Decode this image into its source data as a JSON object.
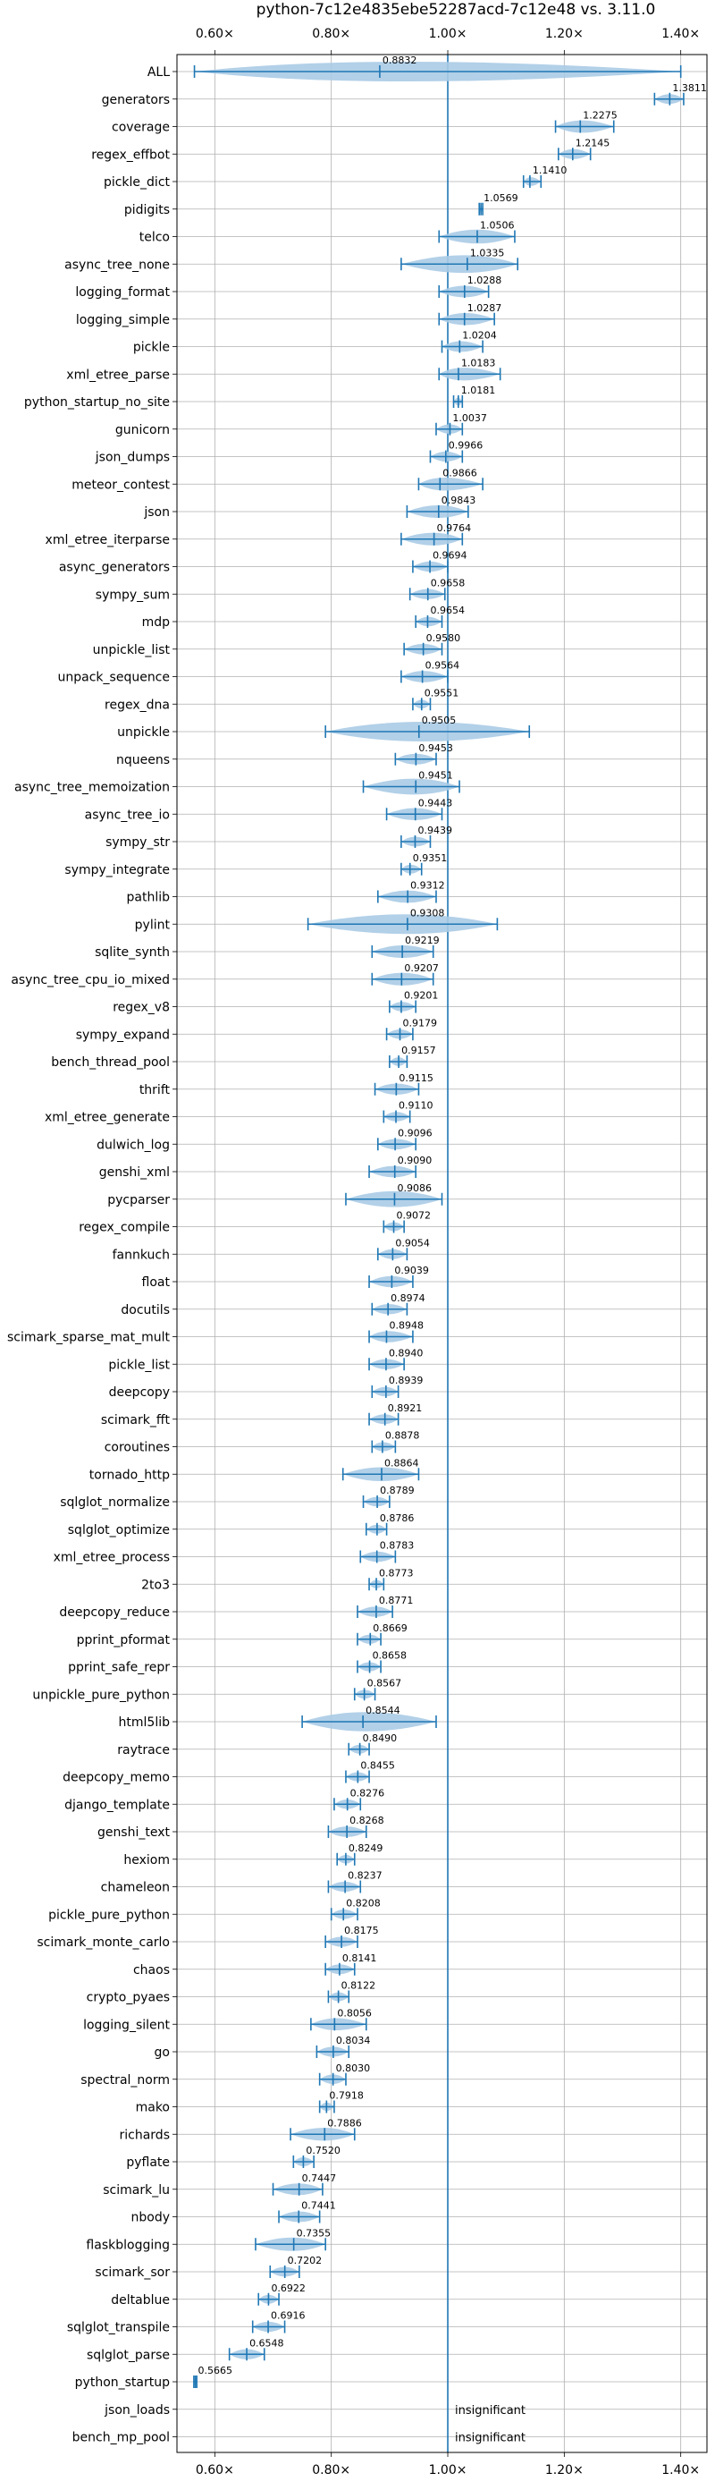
{
  "chart_data": {
    "type": "violin",
    "title": "python-7c12e4835ebe52287acd-7c12e48 vs. 3.11.0",
    "xlim": [
      0.535,
      1.445
    ],
    "xticks": [
      0.6,
      0.8,
      1.0,
      1.2,
      1.4
    ],
    "xtick_labels": [
      "0.60×",
      "0.80×",
      "1.00×",
      "1.20×",
      "1.40×"
    ],
    "reference_line": 1.0,
    "accent_color": "#1f77b4",
    "violin_color": "#aacbe6",
    "grid": true,
    "benchmarks": [
      {
        "name": "ALL",
        "value": 0.8832,
        "label": "0.8832",
        "lo": 0.565,
        "hi": 1.4
      },
      {
        "name": "generators",
        "value": 1.3811,
        "label": "1.3811",
        "lo": 1.355,
        "hi": 1.405
      },
      {
        "name": "coverage",
        "value": 1.2275,
        "label": "1.2275",
        "lo": 1.185,
        "hi": 1.285
      },
      {
        "name": "regex_effbot",
        "value": 1.2145,
        "label": "1.2145",
        "lo": 1.19,
        "hi": 1.245
      },
      {
        "name": "pickle_dict",
        "value": 1.141,
        "label": "1.1410",
        "lo": 1.13,
        "hi": 1.16
      },
      {
        "name": "pidigits",
        "value": 1.0569,
        "label": "1.0569",
        "lo": 1.054,
        "hi": 1.06
      },
      {
        "name": "telco",
        "value": 1.0506,
        "label": "1.0506",
        "lo": 0.985,
        "hi": 1.115
      },
      {
        "name": "async_tree_none",
        "value": 1.0335,
        "label": "1.0335",
        "lo": 0.92,
        "hi": 1.12
      },
      {
        "name": "logging_format",
        "value": 1.0288,
        "label": "1.0288",
        "lo": 0.985,
        "hi": 1.07
      },
      {
        "name": "logging_simple",
        "value": 1.0287,
        "label": "1.0287",
        "lo": 0.985,
        "hi": 1.08
      },
      {
        "name": "pickle",
        "value": 1.0204,
        "label": "1.0204",
        "lo": 0.99,
        "hi": 1.06
      },
      {
        "name": "xml_etree_parse",
        "value": 1.0183,
        "label": "1.0183",
        "lo": 0.985,
        "hi": 1.09
      },
      {
        "name": "python_startup_no_site",
        "value": 1.0181,
        "label": "1.0181",
        "lo": 1.01,
        "hi": 1.025
      },
      {
        "name": "gunicorn",
        "value": 1.0037,
        "label": "1.0037",
        "lo": 0.98,
        "hi": 1.025
      },
      {
        "name": "json_dumps",
        "value": 0.9966,
        "label": "0.9966",
        "lo": 0.97,
        "hi": 1.025
      },
      {
        "name": "meteor_contest",
        "value": 0.9866,
        "label": "0.9866",
        "lo": 0.95,
        "hi": 1.06
      },
      {
        "name": "json",
        "value": 0.9843,
        "label": "0.9843",
        "lo": 0.93,
        "hi": 1.035
      },
      {
        "name": "xml_etree_iterparse",
        "value": 0.9764,
        "label": "0.9764",
        "lo": 0.92,
        "hi": 1.025
      },
      {
        "name": "async_generators",
        "value": 0.9694,
        "label": "0.9694",
        "lo": 0.94,
        "hi": 1.0
      },
      {
        "name": "sympy_sum",
        "value": 0.9658,
        "label": "0.9658",
        "lo": 0.935,
        "hi": 0.995
      },
      {
        "name": "mdp",
        "value": 0.9654,
        "label": "0.9654",
        "lo": 0.945,
        "hi": 0.99
      },
      {
        "name": "unpickle_list",
        "value": 0.958,
        "label": "0.9580",
        "lo": 0.925,
        "hi": 0.99
      },
      {
        "name": "unpack_sequence",
        "value": 0.9564,
        "label": "0.9564",
        "lo": 0.92,
        "hi": 1.0
      },
      {
        "name": "regex_dna",
        "value": 0.9551,
        "label": "0.9551",
        "lo": 0.94,
        "hi": 0.97
      },
      {
        "name": "unpickle",
        "value": 0.9505,
        "label": "0.9505",
        "lo": 0.79,
        "hi": 1.14
      },
      {
        "name": "nqueens",
        "value": 0.9453,
        "label": "0.9453",
        "lo": 0.91,
        "hi": 0.98
      },
      {
        "name": "async_tree_memoization",
        "value": 0.9451,
        "label": "0.9451",
        "lo": 0.855,
        "hi": 1.02
      },
      {
        "name": "async_tree_io",
        "value": 0.9443,
        "label": "0.9443",
        "lo": 0.895,
        "hi": 0.99
      },
      {
        "name": "sympy_str",
        "value": 0.9439,
        "label": "0.9439",
        "lo": 0.92,
        "hi": 0.97
      },
      {
        "name": "sympy_integrate",
        "value": 0.9351,
        "label": "0.9351",
        "lo": 0.92,
        "hi": 0.955
      },
      {
        "name": "pathlib",
        "value": 0.9312,
        "label": "0.9312",
        "lo": 0.88,
        "hi": 0.98
      },
      {
        "name": "pylint",
        "value": 0.9308,
        "label": "0.9308",
        "lo": 0.76,
        "hi": 1.085
      },
      {
        "name": "sqlite_synth",
        "value": 0.9219,
        "label": "0.9219",
        "lo": 0.87,
        "hi": 0.975
      },
      {
        "name": "async_tree_cpu_io_mixed",
        "value": 0.9207,
        "label": "0.9207",
        "lo": 0.87,
        "hi": 0.975
      },
      {
        "name": "regex_v8",
        "value": 0.9201,
        "label": "0.9201",
        "lo": 0.9,
        "hi": 0.945
      },
      {
        "name": "sympy_expand",
        "value": 0.9179,
        "label": "0.9179",
        "lo": 0.895,
        "hi": 0.94
      },
      {
        "name": "bench_thread_pool",
        "value": 0.9157,
        "label": "0.9157",
        "lo": 0.9,
        "hi": 0.93
      },
      {
        "name": "thrift",
        "value": 0.9115,
        "label": "0.9115",
        "lo": 0.875,
        "hi": 0.95
      },
      {
        "name": "xml_etree_generate",
        "value": 0.911,
        "label": "0.9110",
        "lo": 0.89,
        "hi": 0.935
      },
      {
        "name": "dulwich_log",
        "value": 0.9096,
        "label": "0.9096",
        "lo": 0.88,
        "hi": 0.945
      },
      {
        "name": "genshi_xml",
        "value": 0.909,
        "label": "0.9090",
        "lo": 0.865,
        "hi": 0.945
      },
      {
        "name": "pycparser",
        "value": 0.9086,
        "label": "0.9086",
        "lo": 0.825,
        "hi": 0.99
      },
      {
        "name": "regex_compile",
        "value": 0.9072,
        "label": "0.9072",
        "lo": 0.89,
        "hi": 0.925
      },
      {
        "name": "fannkuch",
        "value": 0.9054,
        "label": "0.9054",
        "lo": 0.88,
        "hi": 0.93
      },
      {
        "name": "float",
        "value": 0.9039,
        "label": "0.9039",
        "lo": 0.865,
        "hi": 0.94
      },
      {
        "name": "docutils",
        "value": 0.8974,
        "label": "0.8974",
        "lo": 0.87,
        "hi": 0.93
      },
      {
        "name": "scimark_sparse_mat_mult",
        "value": 0.8948,
        "label": "0.8948",
        "lo": 0.865,
        "hi": 0.94
      },
      {
        "name": "pickle_list",
        "value": 0.894,
        "label": "0.8940",
        "lo": 0.865,
        "hi": 0.925
      },
      {
        "name": "deepcopy",
        "value": 0.8939,
        "label": "0.8939",
        "lo": 0.87,
        "hi": 0.915
      },
      {
        "name": "scimark_fft",
        "value": 0.8921,
        "label": "0.8921",
        "lo": 0.865,
        "hi": 0.915
      },
      {
        "name": "coroutines",
        "value": 0.8878,
        "label": "0.8878",
        "lo": 0.87,
        "hi": 0.91
      },
      {
        "name": "tornado_http",
        "value": 0.8864,
        "label": "0.8864",
        "lo": 0.82,
        "hi": 0.95
      },
      {
        "name": "sqlglot_normalize",
        "value": 0.8789,
        "label": "0.8789",
        "lo": 0.855,
        "hi": 0.9
      },
      {
        "name": "sqlglot_optimize",
        "value": 0.8786,
        "label": "0.8786",
        "lo": 0.86,
        "hi": 0.895
      },
      {
        "name": "xml_etree_process",
        "value": 0.8783,
        "label": "0.8783",
        "lo": 0.85,
        "hi": 0.91
      },
      {
        "name": "2to3",
        "value": 0.8773,
        "label": "0.8773",
        "lo": 0.865,
        "hi": 0.89
      },
      {
        "name": "deepcopy_reduce",
        "value": 0.8771,
        "label": "0.8771",
        "lo": 0.845,
        "hi": 0.905
      },
      {
        "name": "pprint_pformat",
        "value": 0.8669,
        "label": "0.8669",
        "lo": 0.845,
        "hi": 0.885
      },
      {
        "name": "pprint_safe_repr",
        "value": 0.8658,
        "label": "0.8658",
        "lo": 0.845,
        "hi": 0.885
      },
      {
        "name": "unpickle_pure_python",
        "value": 0.8567,
        "label": "0.8567",
        "lo": 0.84,
        "hi": 0.875
      },
      {
        "name": "html5lib",
        "value": 0.8544,
        "label": "0.8544",
        "lo": 0.75,
        "hi": 0.98
      },
      {
        "name": "raytrace",
        "value": 0.849,
        "label": "0.8490",
        "lo": 0.83,
        "hi": 0.865
      },
      {
        "name": "deepcopy_memo",
        "value": 0.8455,
        "label": "0.8455",
        "lo": 0.825,
        "hi": 0.865
      },
      {
        "name": "django_template",
        "value": 0.8276,
        "label": "0.8276",
        "lo": 0.805,
        "hi": 0.85
      },
      {
        "name": "genshi_text",
        "value": 0.8268,
        "label": "0.8268",
        "lo": 0.795,
        "hi": 0.86
      },
      {
        "name": "hexiom",
        "value": 0.8249,
        "label": "0.8249",
        "lo": 0.81,
        "hi": 0.84
      },
      {
        "name": "chameleon",
        "value": 0.8237,
        "label": "0.8237",
        "lo": 0.795,
        "hi": 0.85
      },
      {
        "name": "pickle_pure_python",
        "value": 0.8208,
        "label": "0.8208",
        "lo": 0.8,
        "hi": 0.845
      },
      {
        "name": "scimark_monte_carlo",
        "value": 0.8175,
        "label": "0.8175",
        "lo": 0.79,
        "hi": 0.845
      },
      {
        "name": "chaos",
        "value": 0.8141,
        "label": "0.8141",
        "lo": 0.79,
        "hi": 0.84
      },
      {
        "name": "crypto_pyaes",
        "value": 0.8122,
        "label": "0.8122",
        "lo": 0.795,
        "hi": 0.83
      },
      {
        "name": "logging_silent",
        "value": 0.8056,
        "label": "0.8056",
        "lo": 0.765,
        "hi": 0.86
      },
      {
        "name": "go",
        "value": 0.8034,
        "label": "0.8034",
        "lo": 0.775,
        "hi": 0.83
      },
      {
        "name": "spectral_norm",
        "value": 0.803,
        "label": "0.8030",
        "lo": 0.78,
        "hi": 0.825
      },
      {
        "name": "mako",
        "value": 0.7918,
        "label": "0.7918",
        "lo": 0.78,
        "hi": 0.805
      },
      {
        "name": "richards",
        "value": 0.7886,
        "label": "0.7886",
        "lo": 0.73,
        "hi": 0.84
      },
      {
        "name": "pyflate",
        "value": 0.752,
        "label": "0.7520",
        "lo": 0.735,
        "hi": 0.77
      },
      {
        "name": "scimark_lu",
        "value": 0.7447,
        "label": "0.7447",
        "lo": 0.7,
        "hi": 0.785
      },
      {
        "name": "nbody",
        "value": 0.7441,
        "label": "0.7441",
        "lo": 0.71,
        "hi": 0.78
      },
      {
        "name": "flaskblogging",
        "value": 0.7355,
        "label": "0.7355",
        "lo": 0.67,
        "hi": 0.79
      },
      {
        "name": "scimark_sor",
        "value": 0.7202,
        "label": "0.7202",
        "lo": 0.695,
        "hi": 0.745
      },
      {
        "name": "deltablue",
        "value": 0.6922,
        "label": "0.6922",
        "lo": 0.675,
        "hi": 0.71
      },
      {
        "name": "sqlglot_transpile",
        "value": 0.6916,
        "label": "0.6916",
        "lo": 0.665,
        "hi": 0.72
      },
      {
        "name": "sqlglot_parse",
        "value": 0.6548,
        "label": "0.6548",
        "lo": 0.625,
        "hi": 0.685
      },
      {
        "name": "python_startup",
        "value": 0.5665,
        "label": "0.5665",
        "lo": 0.564,
        "hi": 0.569
      },
      {
        "name": "json_loads",
        "value": null,
        "label": "insignificant"
      },
      {
        "name": "bench_mp_pool",
        "value": null,
        "label": "insignificant"
      }
    ]
  }
}
